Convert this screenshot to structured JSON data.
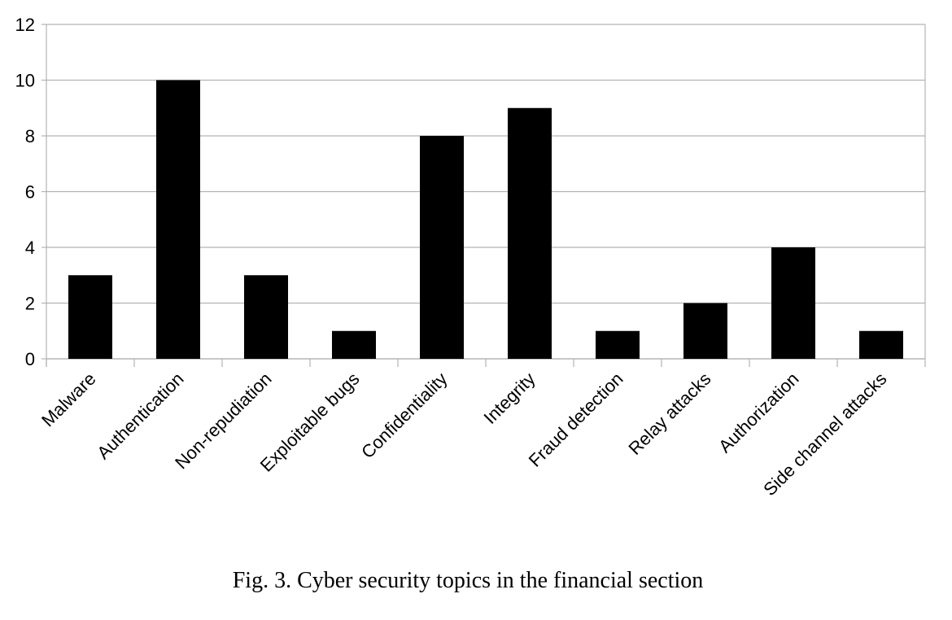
{
  "caption": "Fig. 3. Cyber security topics in the financial section",
  "chart_data": {
    "type": "bar",
    "categories": [
      "Malware",
      "Authentication",
      "Non-repudiation",
      "Exploitable bugs",
      "Confidentiality",
      "Integrity",
      "Fraud detection",
      "Relay attacks",
      "Authorization",
      "Side channel attacks"
    ],
    "values": [
      3,
      10,
      3,
      1,
      8,
      9,
      1,
      2,
      4,
      1
    ],
    "ylim": [
      0,
      12
    ],
    "yticks": [
      0,
      2,
      4,
      6,
      8,
      10,
      12
    ],
    "title": "",
    "xlabel": "",
    "ylabel": "",
    "grid": true,
    "legend": "none",
    "colors": {
      "bar": "#000000",
      "grid": "#b3b3b3",
      "axis": "#b3b3b3"
    }
  }
}
